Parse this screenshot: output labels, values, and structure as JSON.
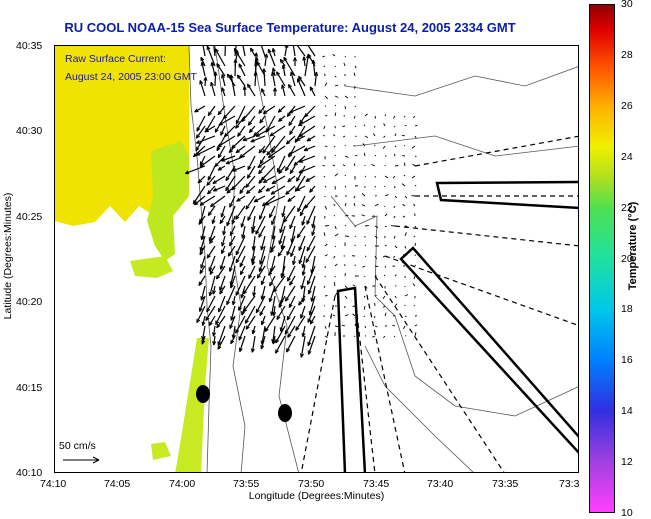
{
  "title": "RU COOL  NOAA-15  Sea Surface Temperature:  August 24, 2005 2334 GMT",
  "current_note": {
    "line1": "Raw Surface Current:",
    "line2": "August 24, 2005 23:00 GMT"
  },
  "axes": {
    "xlabel": "Longitude (Degrees:Minutes)",
    "ylabel": "Latitude (Degrees:Minutes)",
    "x_ticks": [
      "74:10",
      "74:05",
      "74:00",
      "73:55",
      "73:50",
      "73:45",
      "73:40",
      "73:35",
      "73:3"
    ],
    "y_ticks": [
      "40:35",
      "40:30",
      "40:25",
      "40:20",
      "40:15",
      "40:10"
    ]
  },
  "scale": {
    "label": "50 cm/s"
  },
  "colorbar": {
    "label": "Temperature (°C)",
    "ticks": [
      "30",
      "28",
      "26",
      "24",
      "22",
      "20",
      "18",
      "16",
      "14",
      "12",
      "10"
    ],
    "min": 10,
    "max": 30
  },
  "colors": {
    "title": "#0c1ea8",
    "land_warm": "#f0e000",
    "land_cool": "#b8e81e",
    "vector": "#000000"
  }
}
